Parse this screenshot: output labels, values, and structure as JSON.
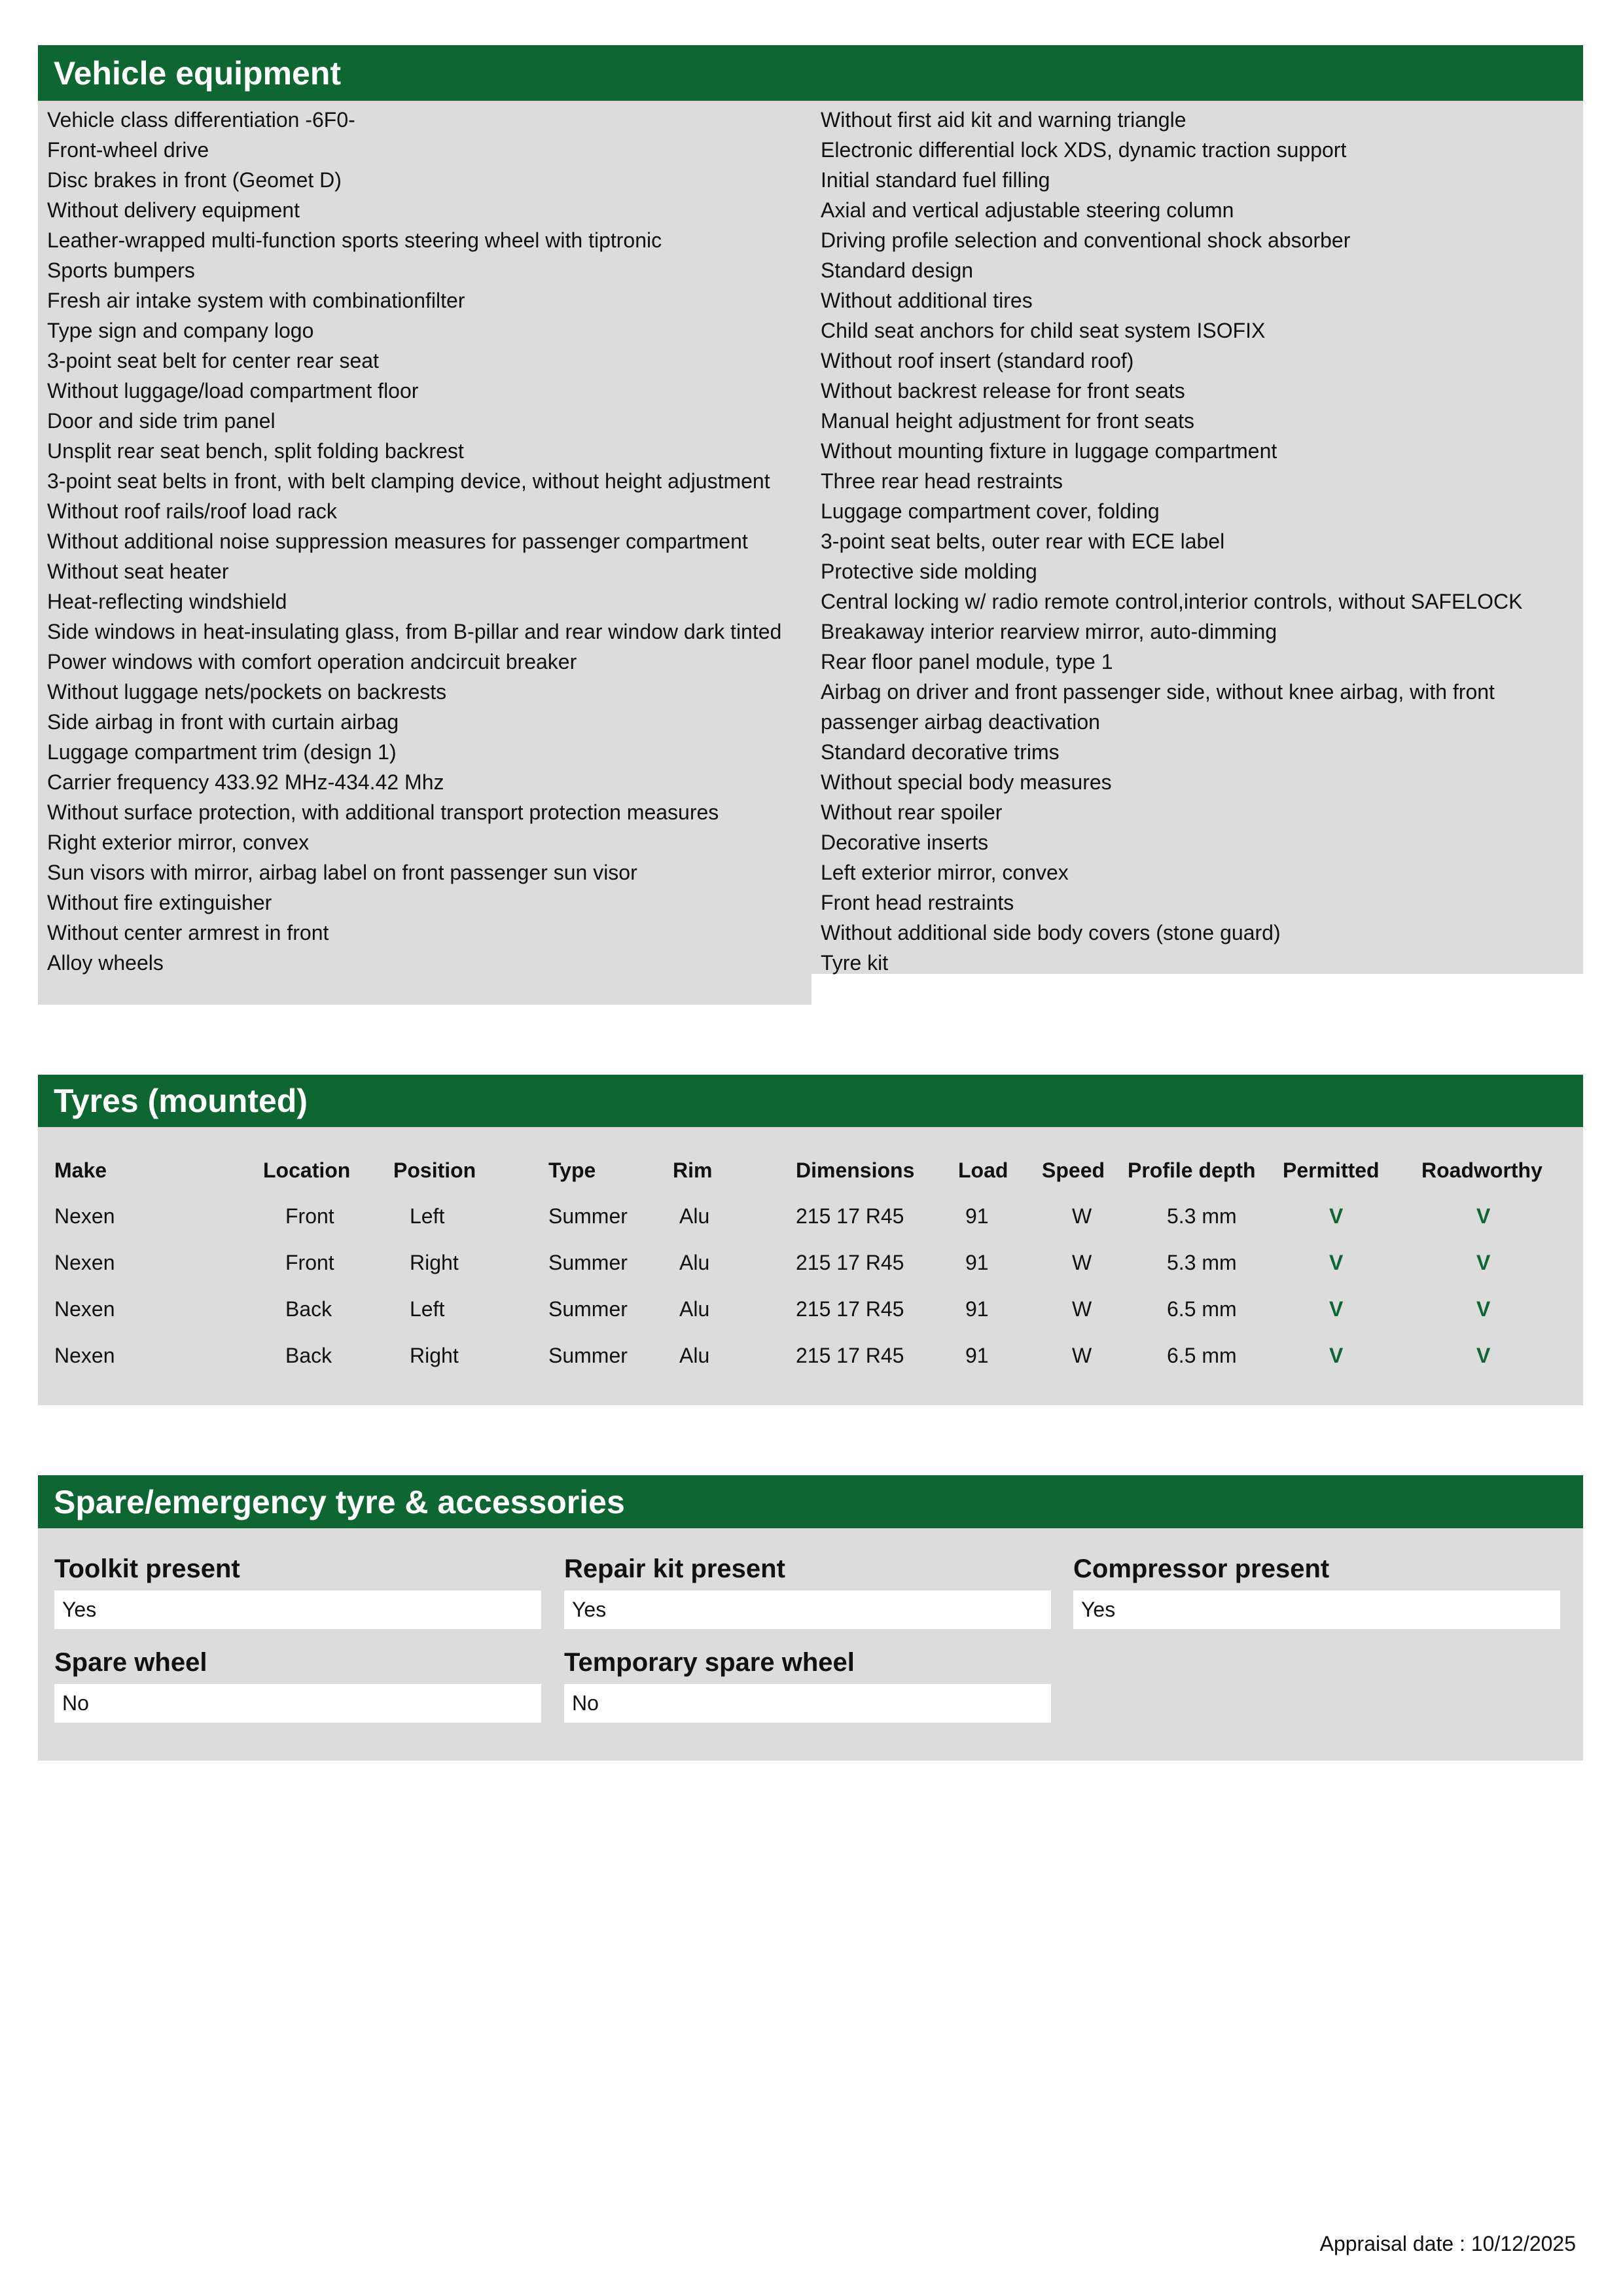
{
  "equipment": {
    "title": "Vehicle equipment",
    "left": [
      "Vehicle class differentiation -6F0-",
      "Front-wheel drive",
      "Disc brakes in front (Geomet D)",
      "Without delivery equipment",
      "Leather-wrapped multi-function sports steering wheel with tiptronic",
      "Sports bumpers",
      "Fresh air intake system with combinationfilter",
      "Type sign and company logo",
      "3-point seat belt for center rear seat",
      "Without luggage/load compartment floor",
      "Door and side trim panel",
      "Unsplit rear seat bench, split folding backrest",
      "3-point seat belts in front, with belt clamping device, without height adjustment",
      "Without roof rails/roof load rack",
      "Without additional noise suppression measures for passenger compartment",
      "Without seat heater",
      "Heat-reflecting windshield",
      "Side windows in heat-insulating glass, from B-pillar and rear window dark tinted",
      "Power windows with comfort operation andcircuit breaker",
      "Without luggage nets/pockets on backrests",
      "Side airbag in front with curtain airbag",
      "Luggage compartment trim (design 1)",
      "Carrier frequency 433.92 MHz-434.42 Mhz",
      "Without surface protection, with additional transport protection measures",
      "Right exterior mirror, convex",
      "Sun visors with mirror, airbag label on front passenger sun visor",
      "Without fire extinguisher",
      "Without center armrest in front",
      "Alloy wheels"
    ],
    "right": [
      "Without first aid kit and warning triangle",
      "Electronic differential lock XDS, dynamic traction support",
      "Initial standard fuel filling",
      "Axial and vertical adjustable steering column",
      "Driving profile selection and conventional shock absorber",
      "Standard design",
      "Without additional tires",
      "Child seat anchors for child seat system ISOFIX",
      "Without roof insert (standard roof)",
      "Without backrest release for front seats",
      "Manual height adjustment for front seats",
      "Without mounting fixture in luggage compartment",
      "Three rear head restraints",
      "Luggage compartment cover, folding",
      "3-point seat belts, outer rear with ECE label",
      "Protective side molding",
      "Central locking w/ radio remote control,interior controls, without SAFELOCK",
      "Breakaway interior rearview mirror, auto-dimming",
      "Rear floor panel module, type 1",
      "Airbag on driver and front passenger side, without knee airbag, with front passenger airbag deactivation",
      "Standard decorative trims",
      "Without special body measures",
      "Without rear spoiler",
      "Decorative inserts",
      "Left exterior mirror, convex",
      "Front head restraints",
      "Without additional side body covers (stone guard)",
      "Tyre kit"
    ]
  },
  "tyres": {
    "title": "Tyres (mounted)",
    "headers": [
      "Make",
      "Location",
      "Position",
      "Type",
      "Rim",
      "Dimensions",
      "Load",
      "Speed",
      "Profile depth",
      "Permitted",
      "Roadworthy"
    ],
    "rows": [
      [
        "Nexen",
        "Front",
        "Left",
        "Summer",
        "Alu",
        "215 17 R45",
        "91",
        "W",
        "5.3 mm",
        "V",
        "V"
      ],
      [
        "Nexen",
        "Front",
        "Right",
        "Summer",
        "Alu",
        "215 17 R45",
        "91",
        "W",
        "5.3 mm",
        "V",
        "V"
      ],
      [
        "Nexen",
        "Back",
        "Left",
        "Summer",
        "Alu",
        "215 17 R45",
        "91",
        "W",
        "6.5 mm",
        "V",
        "V"
      ],
      [
        "Nexen",
        "Back",
        "Right",
        "Summer",
        "Alu",
        "215 17 R45",
        "91",
        "W",
        "6.5 mm",
        "V",
        "V"
      ]
    ]
  },
  "spare": {
    "title": "Spare/emergency tyre & accessories",
    "fields": [
      {
        "label": "Toolkit present",
        "value": "Yes"
      },
      {
        "label": "Repair kit present",
        "value": "Yes"
      },
      {
        "label": "Compressor present",
        "value": "Yes"
      },
      {
        "label": "Spare wheel",
        "value": "No"
      },
      {
        "label": "Temporary spare wheel",
        "value": "No"
      }
    ]
  },
  "footer": {
    "appraisal_date": "Appraisal date : 10/12/2025"
  },
  "colors": {
    "brand": "#0e6633",
    "panel": "#dcdcdc"
  }
}
